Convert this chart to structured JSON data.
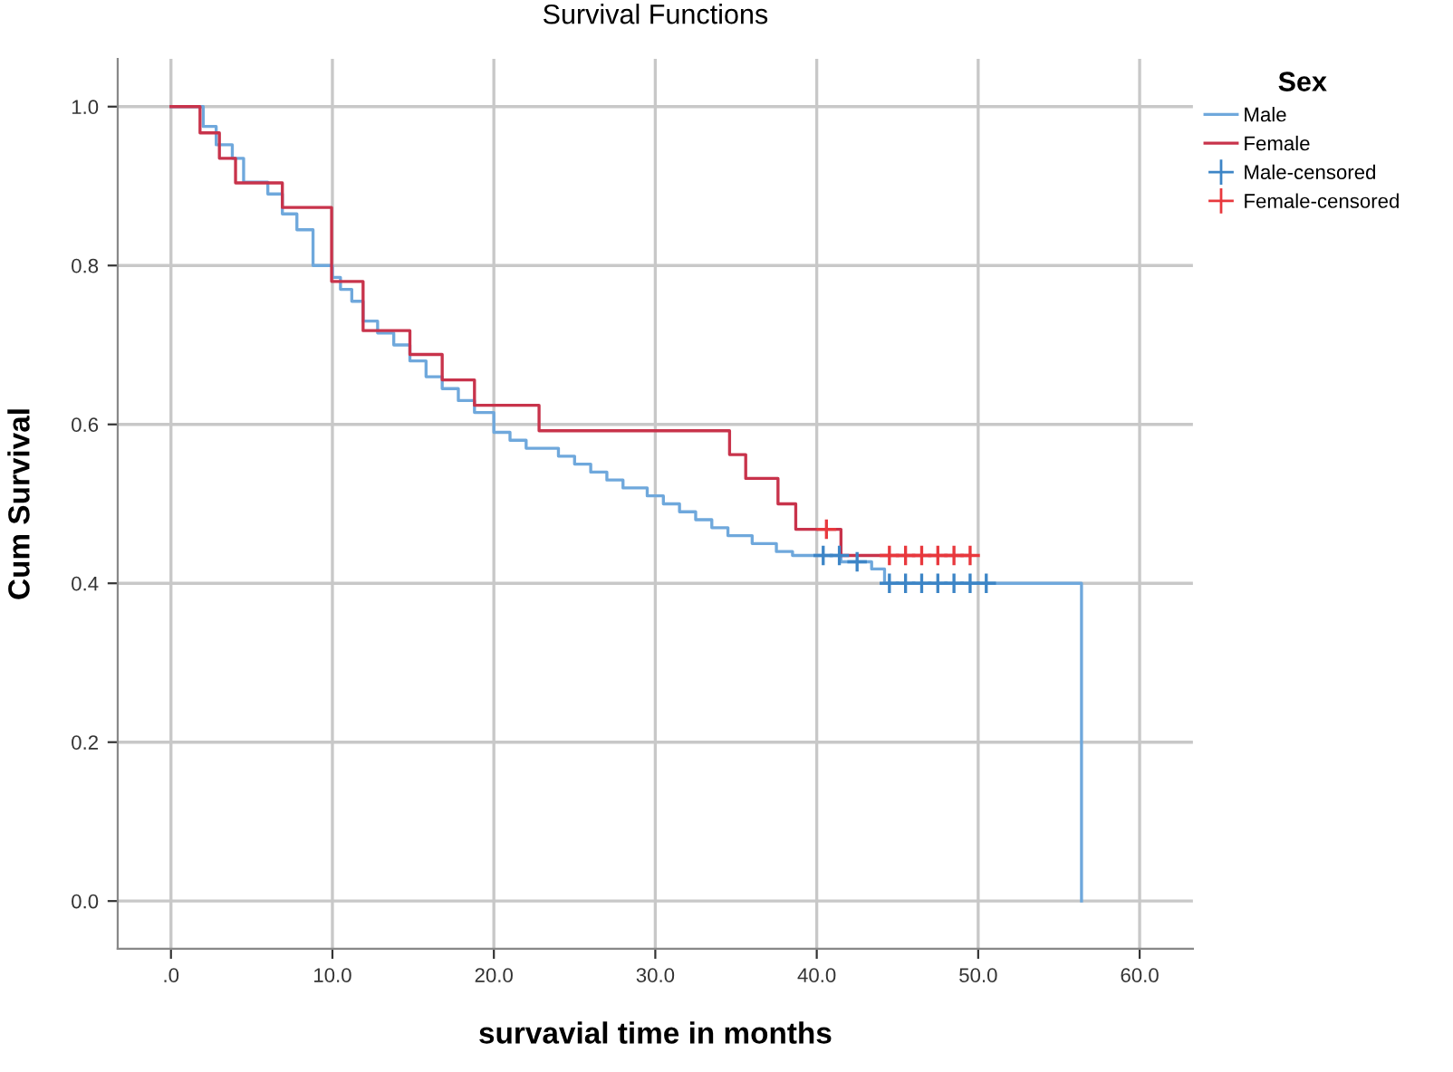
{
  "chart_data": {
    "type": "step",
    "title": "Survival Functions",
    "xlabel": "survavial time in months",
    "ylabel": "Cum Survival",
    "legend_title": "Sex",
    "xlim": [
      -3.3,
      63.3
    ],
    "ylim": [
      -0.06,
      1.06
    ],
    "xticks": [
      {
        "value": 0,
        "label": ".0"
      },
      {
        "value": 10,
        "label": "10.0"
      },
      {
        "value": 20,
        "label": "20.0"
      },
      {
        "value": 30,
        "label": "30.0"
      },
      {
        "value": 40,
        "label": "40.0"
      },
      {
        "value": 50,
        "label": "50.0"
      },
      {
        "value": 60,
        "label": "60.0"
      }
    ],
    "yticks": [
      {
        "value": 0,
        "label": "0.0"
      },
      {
        "value": 0.2,
        "label": "0.2"
      },
      {
        "value": 0.4,
        "label": "0.4"
      },
      {
        "value": 0.6,
        "label": "0.6"
      },
      {
        "value": 0.8,
        "label": "0.8"
      },
      {
        "value": 1,
        "label": "1.0"
      }
    ],
    "grid": true,
    "legend": "top right",
    "series": [
      {
        "name": "Male",
        "color": "#6fa8dc",
        "x": [
          0,
          2.0,
          2.8,
          3.8,
          4.5,
          6.0,
          6.9,
          7.8,
          8.8,
          10.0,
          10.5,
          11.2,
          11.9,
          12.8,
          13.8,
          14.8,
          15.8,
          16.8,
          17.8,
          18.8,
          20.0,
          21.0,
          22.0,
          24.0,
          25.0,
          26.0,
          27.0,
          28.0,
          29.5,
          30.5,
          31.5,
          32.5,
          33.5,
          34.5,
          36.0,
          37.5,
          38.5,
          41.5,
          43.4,
          44.2,
          56.4
        ],
        "values": [
          1.0,
          0.975,
          0.952,
          0.935,
          0.905,
          0.89,
          0.865,
          0.845,
          0.8,
          0.785,
          0.77,
          0.755,
          0.73,
          0.715,
          0.7,
          0.68,
          0.66,
          0.645,
          0.63,
          0.615,
          0.59,
          0.58,
          0.57,
          0.56,
          0.55,
          0.54,
          0.53,
          0.52,
          0.51,
          0.5,
          0.49,
          0.48,
          0.47,
          0.46,
          0.45,
          0.44,
          0.435,
          0.427,
          0.418,
          0.4,
          0.0
        ]
      },
      {
        "name": "Female",
        "color": "#c8334b",
        "x": [
          0,
          1.8,
          3.0,
          4.0,
          6.9,
          9.95,
          11.9,
          14.8,
          16.8,
          18.8,
          22.8,
          34.6,
          35.6,
          37.6,
          38.7,
          41.5,
          49.5
        ],
        "values": [
          1.0,
          0.967,
          0.935,
          0.904,
          0.873,
          0.78,
          0.718,
          0.688,
          0.656,
          0.624,
          0.592,
          0.562,
          0.532,
          0.5,
          0.468,
          0.435,
          0.435
        ]
      },
      {
        "name": "Male-censored",
        "type": "scatter",
        "marker": "cross",
        "color": "#3d85c6",
        "x": [
          40.4,
          41.4,
          42.5,
          44.5,
          45.5,
          46.5,
          47.5,
          48.5,
          49.5,
          50.5
        ],
        "values": [
          0.435,
          0.435,
          0.427,
          0.4,
          0.4,
          0.4,
          0.4,
          0.4,
          0.4,
          0.4
        ]
      },
      {
        "name": "Female-censored",
        "type": "scatter",
        "marker": "cross",
        "color": "#e8383d",
        "x": [
          40.6,
          44.5,
          45.5,
          46.5,
          47.5,
          48.5,
          49.5
        ],
        "values": [
          0.468,
          0.435,
          0.435,
          0.435,
          0.435,
          0.435,
          0.435
        ]
      }
    ]
  }
}
